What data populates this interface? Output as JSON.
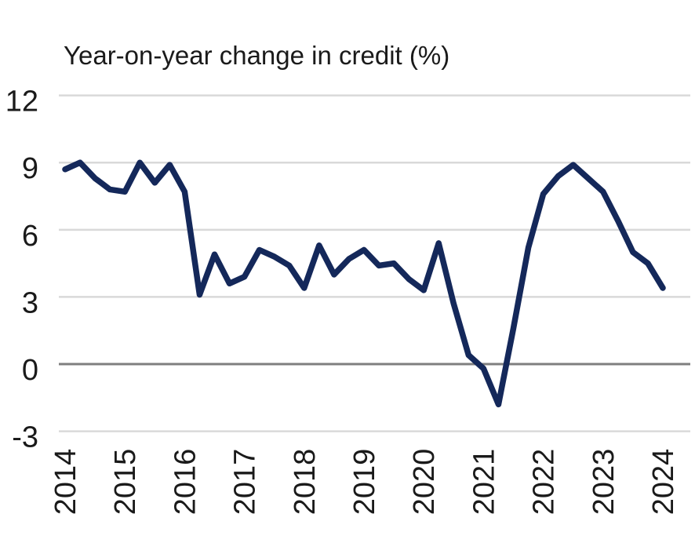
{
  "chart_data": {
    "type": "line",
    "title": "Year-on-year change in credit (%)",
    "unit": "%",
    "xlabel": "",
    "ylabel": "",
    "ylim": [
      -3,
      12
    ],
    "y_tick_labels": [
      12,
      9,
      6,
      3,
      0,
      -3
    ],
    "x_tick_labels": [
      "2014",
      "2015",
      "2016",
      "2017",
      "2018",
      "2019",
      "2020",
      "2021",
      "2022",
      "2023",
      "2024"
    ],
    "grid": "horizontal",
    "zero_line": true,
    "legend": "none",
    "series": [
      {
        "name": "Year-on-year change in credit",
        "color": "#14285a",
        "x": [
          "2014 Q1",
          "2014 Q2",
          "2014 Q3",
          "2014 Q4",
          "2015 Q1",
          "2015 Q2",
          "2015 Q3",
          "2015 Q4",
          "2016 Q1",
          "2016 Q2",
          "2016 Q3",
          "2016 Q4",
          "2017 Q1",
          "2017 Q2",
          "2017 Q3",
          "2017 Q4",
          "2018 Q1",
          "2018 Q2",
          "2018 Q3",
          "2018 Q4",
          "2019 Q1",
          "2019 Q2",
          "2019 Q3",
          "2019 Q4",
          "2020 Q1",
          "2020 Q2",
          "2020 Q3",
          "2020 Q4",
          "2021 Q1",
          "2021 Q2",
          "2021 Q3",
          "2021 Q4",
          "2022 Q1",
          "2022 Q2",
          "2022 Q3",
          "2022 Q4",
          "2023 Q1",
          "2023 Q2",
          "2023 Q3",
          "2023 Q4",
          "2024 Q1"
        ],
        "values": [
          8.7,
          9.0,
          8.3,
          7.8,
          7.7,
          9.0,
          8.1,
          8.9,
          7.7,
          3.1,
          4.9,
          3.6,
          3.9,
          5.1,
          4.8,
          4.4,
          3.4,
          5.3,
          4.0,
          4.7,
          5.1,
          4.4,
          4.5,
          3.8,
          3.3,
          5.4,
          2.7,
          0.4,
          -0.2,
          -1.8,
          1.6,
          5.2,
          7.6,
          8.4,
          8.9,
          8.3,
          7.7,
          6.4,
          5.0,
          4.5,
          3.4
        ]
      }
    ]
  },
  "colors": {
    "background": "#ffffff",
    "line": "#14285a",
    "grid": "#d9d9d9",
    "zero_line": "#7f7f7f",
    "text": "#1a1a1a"
  }
}
